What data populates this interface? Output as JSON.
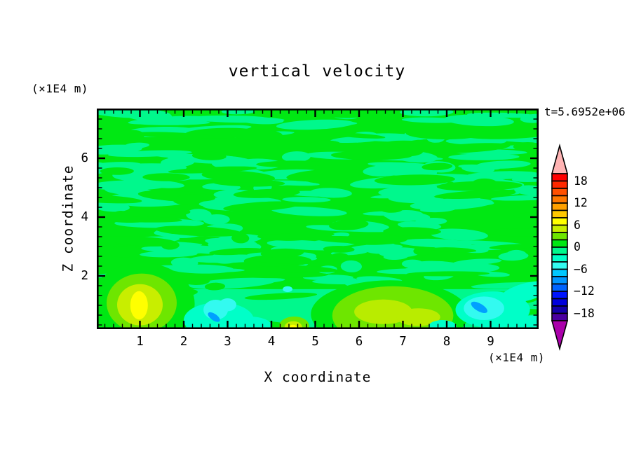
{
  "chart_data": {
    "type": "filled_contour",
    "title": "vertical velocity",
    "time_label": "t=5.6952e+06",
    "xlabel": "X coordinate",
    "ylabel": "Z coordinate",
    "x_unit": "(×1E4 m)",
    "y_unit": "(×1E4 m)",
    "x_range": [
      0,
      10
    ],
    "z_range": [
      0.2,
      7.7
    ],
    "x_major_ticks": [
      1,
      2,
      3,
      4,
      5,
      6,
      7,
      8,
      9
    ],
    "x_minor_step": 0.2,
    "z_major_ticks": [
      2,
      4,
      6
    ],
    "z_minor_step": 0.3333,
    "grid": false,
    "legend_position": "right",
    "colorbar": {
      "min": -20,
      "max": 20,
      "step": 2,
      "label_values": [
        "18",
        "12",
        "6",
        "0",
        "−6",
        "−12",
        "−18"
      ],
      "cells_top_to_bottom": [
        "#FF0000",
        "#FF2800",
        "#FF5000",
        "#FF7800",
        "#FFA000",
        "#FFC800",
        "#FFFF00",
        "#C8EE00",
        "#6EE600",
        "#00E813",
        "#00F88C",
        "#00FFC8",
        "#33FAF0",
        "#00C8FF",
        "#0096FF",
        "#0064FF",
        "#0014FF",
        "#0000DC",
        "#1400AA",
        "#4B00A0"
      ],
      "over_color": "#FFB4B4",
      "under_color": "#AA00AA"
    },
    "field": {
      "positive_band_color": "#00E813",
      "negative_band_color": "#00F88C",
      "description": "vertical velocity mostly within ±2 over the domain (mottled green/spring-green bands); stronger updrafts (to +8) and downdrafts (to −10) confined near the lower boundary",
      "texture_seed": 9
    },
    "features": [
      {
        "kind": "band",
        "z_top": 1.55,
        "color": "#00F88C",
        "value_band": "−2..0"
      },
      {
        "kind": "ellipse",
        "x": 1.05,
        "z": 1.05,
        "rx": 1.2,
        "rz": 1.4,
        "rot": 0,
        "color": "#00E813",
        "value_band": "0..2"
      },
      {
        "kind": "ellipse",
        "x": 6.7,
        "z": 0.7,
        "rx": 1.8,
        "rz": 1.15,
        "rot": 0,
        "color": "#00E813",
        "value_band": "0..2"
      },
      {
        "kind": "ellipse",
        "x": 2.8,
        "z": 0.5,
        "rx": 0.8,
        "rz": 0.6,
        "rot": 0,
        "color": "#00FFC8",
        "value_band": "−4..−2"
      },
      {
        "kind": "ellipse",
        "x": 3.5,
        "z": 0.32,
        "rx": 0.5,
        "rz": 0.3,
        "rot": 0,
        "color": "#00FFC8",
        "value_band": "−4..−2"
      },
      {
        "kind": "ellipse",
        "x": 2.73,
        "z": 0.85,
        "rx": 0.28,
        "rz": 0.34,
        "rot": 0,
        "color": "#33FAF0",
        "value_band": "−6..−4"
      },
      {
        "kind": "ellipse",
        "x": 3.0,
        "z": 1.02,
        "rx": 0.2,
        "rz": 0.22,
        "rot": 0,
        "color": "#33FAF0",
        "value_band": "−6..−4"
      },
      {
        "kind": "ellipse",
        "x": 2.69,
        "z": 0.6,
        "rx": 0.16,
        "rz": 0.11,
        "rot": 35,
        "color": "#00A0FF",
        "value_band": "−10..−8"
      },
      {
        "kind": "ellipse",
        "x": 1.04,
        "z": 1.08,
        "rx": 0.8,
        "rz": 1.0,
        "rot": 0,
        "color": "#6EE600",
        "value_band": "2..4"
      },
      {
        "kind": "ellipse",
        "x": 1.0,
        "z": 1.02,
        "rx": 0.52,
        "rz": 0.7,
        "rot": 0,
        "color": "#C8EE00",
        "value_band": "4..6"
      },
      {
        "kind": "ellipse",
        "x": 0.98,
        "z": 1.0,
        "rx": 0.2,
        "rz": 0.48,
        "rot": 0,
        "color": "#FFFF00",
        "value_band": "6..8"
      },
      {
        "kind": "ellipse",
        "x": 4.52,
        "z": 0.3,
        "rx": 0.34,
        "rz": 0.32,
        "rot": 0,
        "color": "#6EE600",
        "value_band": "2..4"
      },
      {
        "kind": "ellipse",
        "x": 4.5,
        "z": 0.26,
        "rx": 0.2,
        "rz": 0.2,
        "rot": 0,
        "color": "#C8EE00",
        "value_band": "4..6"
      },
      {
        "kind": "ellipse",
        "x": 4.49,
        "z": 0.24,
        "rx": 0.09,
        "rz": 0.1,
        "rot": 0,
        "color": "#FFFF00",
        "value_band": "6..8"
      },
      {
        "kind": "ellipse",
        "x": 4.37,
        "z": 1.55,
        "rx": 0.11,
        "rz": 0.1,
        "rot": 0,
        "color": "#33FAF0",
        "value_band": "−6..−4"
      },
      {
        "kind": "ellipse",
        "x": 6.77,
        "z": 0.65,
        "rx": 1.38,
        "rz": 1.0,
        "rot": 0,
        "color": "#6EE600",
        "value_band": "2..4"
      },
      {
        "kind": "ellipse",
        "x": 6.55,
        "z": 0.78,
        "rx": 0.66,
        "rz": 0.42,
        "rot": 0,
        "color": "#B9EC00",
        "value_band": "4..6"
      },
      {
        "kind": "ellipse",
        "x": 7.35,
        "z": 0.6,
        "rx": 0.5,
        "rz": 0.3,
        "rot": 0,
        "color": "#B9EC00",
        "value_band": "4..6"
      },
      {
        "kind": "ellipse",
        "x": 7.9,
        "z": 0.28,
        "rx": 0.32,
        "rz": 0.22,
        "rot": 0,
        "color": "#00FFC8",
        "value_band": "−4..−2"
      },
      {
        "kind": "ellipse",
        "x": 9.05,
        "z": 0.85,
        "rx": 0.85,
        "rz": 0.62,
        "rot": 0,
        "color": "#00FFC8",
        "value_band": "−4..−2"
      },
      {
        "kind": "ellipse",
        "x": 9.8,
        "z": 1.45,
        "rx": 0.6,
        "rz": 0.3,
        "rot": -15,
        "color": "#00FFC8",
        "value_band": "−4..−2"
      },
      {
        "kind": "ellipse",
        "x": 9.95,
        "z": 0.3,
        "rx": 0.55,
        "rz": 0.35,
        "rot": 0,
        "color": "#00FFC8",
        "value_band": "−4..−2"
      },
      {
        "kind": "ellipse",
        "x": 8.85,
        "z": 0.9,
        "rx": 0.46,
        "rz": 0.4,
        "rot": 0,
        "color": "#33FAF0",
        "value_band": "−6..−4"
      },
      {
        "kind": "ellipse",
        "x": 8.74,
        "z": 0.93,
        "rx": 0.21,
        "rz": 0.13,
        "rot": 30,
        "color": "#00A0FF",
        "value_band": "−10..−8"
      }
    ]
  }
}
